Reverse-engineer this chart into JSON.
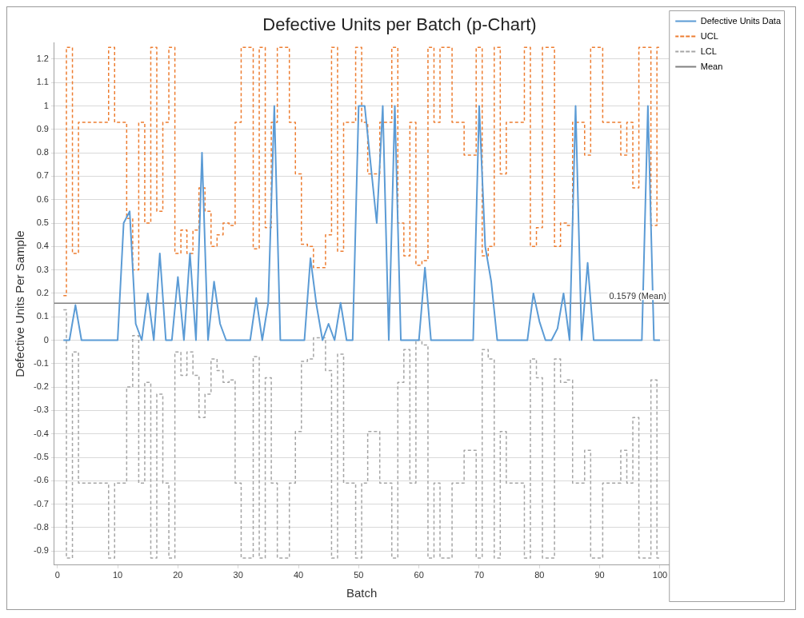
{
  "chart_data": {
    "type": "line",
    "title": "Defective Units per Batch (p-Chart)",
    "xlabel": "Batch",
    "ylabel": "Defective Units Per Sample",
    "x": [
      1,
      2,
      3,
      4,
      5,
      6,
      7,
      8,
      9,
      10,
      11,
      12,
      13,
      14,
      15,
      16,
      17,
      18,
      19,
      20,
      21,
      22,
      23,
      24,
      25,
      26,
      27,
      28,
      29,
      30,
      31,
      32,
      33,
      34,
      35,
      36,
      37,
      38,
      39,
      40,
      41,
      42,
      43,
      44,
      45,
      46,
      47,
      48,
      49,
      50,
      51,
      52,
      53,
      54,
      55,
      56,
      57,
      58,
      59,
      60,
      61,
      62,
      63,
      64,
      65,
      66,
      67,
      68,
      69,
      70,
      71,
      72,
      73,
      74,
      75,
      76,
      77,
      78,
      79,
      80,
      81,
      82,
      83,
      84,
      85,
      86,
      87,
      88,
      89,
      90,
      91,
      92,
      93,
      94,
      95,
      96,
      97,
      98,
      99,
      100
    ],
    "series": [
      {
        "name": "Defective Units Data",
        "type": "line",
        "color": "#5b9bd5",
        "line_style": "solid",
        "values": [
          0,
          0,
          0.15,
          0,
          0,
          0,
          0,
          0,
          0,
          0,
          0.5,
          0.55,
          0.07,
          0,
          0.2,
          0,
          0.37,
          0,
          0,
          0.27,
          0,
          0.37,
          0,
          0.8,
          0,
          0.25,
          0.07,
          0,
          0,
          0,
          0,
          0,
          0.18,
          0,
          0.16,
          1,
          0,
          0,
          0,
          0,
          0,
          0.35,
          0.15,
          0,
          0.07,
          0,
          0.16,
          0,
          0,
          1,
          1,
          0.75,
          0.5,
          1,
          0,
          1,
          0,
          0,
          0,
          0,
          0.31,
          0,
          0,
          0,
          0,
          0,
          0,
          0,
          0,
          1,
          0.4,
          0.25,
          0,
          0,
          0,
          0,
          0,
          0,
          0.2,
          0.08,
          0,
          0,
          0.05,
          0.2,
          0,
          1,
          0,
          0.33,
          0,
          0,
          0,
          0,
          0,
          0,
          0,
          0,
          0,
          1,
          0,
          0
        ]
      },
      {
        "name": "UCL",
        "type": "step",
        "color": "#ed7d31",
        "line_style": "dashed",
        "values": [
          0.19,
          1.25,
          0.37,
          0.93,
          0.93,
          0.93,
          0.93,
          0.93,
          1.25,
          0.93,
          0.93,
          0.52,
          0.3,
          0.93,
          0.5,
          1.25,
          0.55,
          0.93,
          1.25,
          0.37,
          0.47,
          0.37,
          0.47,
          0.65,
          0.55,
          0.4,
          0.45,
          0.5,
          0.49,
          0.93,
          1.25,
          1.25,
          0.39,
          1.25,
          0.48,
          0.93,
          1.25,
          1.25,
          0.93,
          0.71,
          0.41,
          0.4,
          0.31,
          0.31,
          0.45,
          1.25,
          0.38,
          0.93,
          0.93,
          1.25,
          0.93,
          0.71,
          0.71,
          0.93,
          0.93,
          1.25,
          0.5,
          0.36,
          0.93,
          0.32,
          0.34,
          1.25,
          0.93,
          1.25,
          1.25,
          0.93,
          0.93,
          0.79,
          0.79,
          1.25,
          0.36,
          0.4,
          1.25,
          0.71,
          0.93,
          0.93,
          0.93,
          1.25,
          0.4,
          0.48,
          1.25,
          1.25,
          0.4,
          0.5,
          0.49,
          0.93,
          0.93,
          0.79,
          1.25,
          1.25,
          0.93,
          0.93,
          0.93,
          0.79,
          0.93,
          0.65,
          1.25,
          1.25,
          0.49,
          1.25
        ]
      },
      {
        "name": "LCL",
        "type": "step",
        "color": "#a5a5a5",
        "line_style": "dashed",
        "values": [
          0.13,
          -0.93,
          -0.05,
          -0.61,
          -0.61,
          -0.61,
          -0.61,
          -0.61,
          -0.93,
          -0.61,
          -0.61,
          -0.2,
          0.02,
          -0.61,
          -0.18,
          -0.93,
          -0.23,
          -0.61,
          -0.93,
          -0.05,
          -0.15,
          -0.05,
          -0.15,
          -0.33,
          -0.23,
          -0.08,
          -0.13,
          -0.18,
          -0.17,
          -0.61,
          -0.93,
          -0.93,
          -0.07,
          -0.93,
          -0.16,
          -0.61,
          -0.93,
          -0.93,
          -0.61,
          -0.39,
          -0.09,
          -0.08,
          0.01,
          0.01,
          -0.13,
          -0.93,
          -0.06,
          -0.61,
          -0.61,
          -0.93,
          -0.61,
          -0.39,
          -0.39,
          -0.61,
          -0.61,
          -0.93,
          -0.18,
          -0.04,
          -0.61,
          0,
          -0.02,
          -0.93,
          -0.61,
          -0.93,
          -0.93,
          -0.61,
          -0.61,
          -0.47,
          -0.47,
          -0.93,
          -0.04,
          -0.08,
          -0.93,
          -0.39,
          -0.61,
          -0.61,
          -0.61,
          -0.93,
          -0.08,
          -0.16,
          -0.93,
          -0.93,
          -0.08,
          -0.18,
          -0.17,
          -0.61,
          -0.61,
          -0.47,
          -0.93,
          -0.93,
          -0.61,
          -0.61,
          -0.61,
          -0.47,
          -0.61,
          -0.33,
          -0.93,
          -0.93,
          -0.17,
          -0.93
        ]
      }
    ],
    "ref_lines": [
      {
        "axis": "y",
        "value": 0.1579,
        "label": "Mean",
        "color": "#808080"
      }
    ],
    "annotations": [
      {
        "text": "0.1579 (Mean)",
        "x": 100,
        "y": 0.1579
      }
    ],
    "xlim": [
      -0.5,
      101.5
    ],
    "xticks": [
      0,
      10,
      20,
      30,
      40,
      50,
      60,
      70,
      80,
      90,
      100
    ],
    "ylim": [
      -0.96,
      1.27
    ],
    "yticks": [
      -0.9,
      -0.8,
      -0.7,
      -0.6,
      -0.5,
      -0.4,
      -0.3,
      -0.2,
      -0.1,
      0,
      0.1,
      0.2,
      0.3,
      0.4,
      0.5,
      0.6,
      0.7,
      0.8,
      0.9,
      1,
      1.1,
      1.2
    ],
    "grid": "y",
    "legend": "top right",
    "marker": "none"
  }
}
